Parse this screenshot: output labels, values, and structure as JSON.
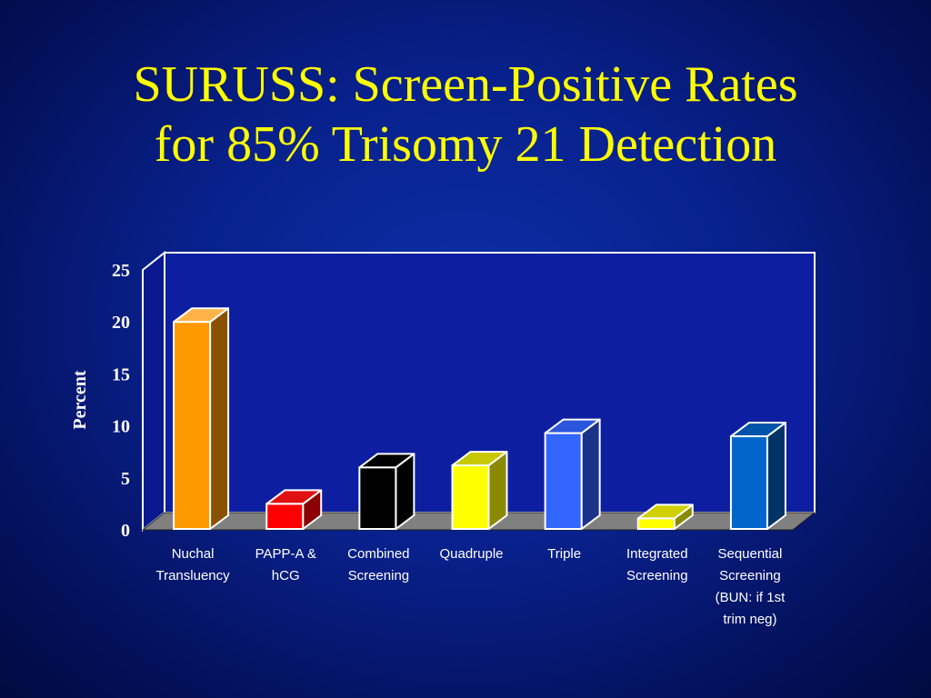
{
  "slide": {
    "title_line1": "SURUSS: Screen-Positive Rates",
    "title_line2": "for 85% Trisomy 21 Detection"
  },
  "chart_data": {
    "type": "bar",
    "title": "",
    "xlabel": "",
    "ylabel": "Percent",
    "ylim": [
      0,
      25
    ],
    "yticks": [
      0,
      5,
      10,
      15,
      20,
      25
    ],
    "grid": false,
    "legend": "none",
    "categories": [
      [
        "Nuchal",
        "Transluency"
      ],
      [
        "PAPP-A &",
        "hCG"
      ],
      [
        "Combined",
        "Screening"
      ],
      [
        "Quadruple"
      ],
      [
        "Triple"
      ],
      [
        "Integrated",
        "Screening"
      ],
      [
        "Sequential",
        "Screening",
        "(BUN: if 1st",
        "trim neg)"
      ]
    ],
    "values": [
      20.0,
      2.5,
      6.0,
      6.2,
      9.3,
      1.1,
      9.0
    ],
    "colors": [
      {
        "front": "#ff9900",
        "side": "#8a5200",
        "top": "#ffb347"
      },
      {
        "front": "#ff0000",
        "side": "#8b0000",
        "top": "#e01010"
      },
      {
        "front": "#000000",
        "side": "#000000",
        "top": "#000000"
      },
      {
        "front": "#ffff00",
        "side": "#8a8a00",
        "top": "#c8c800"
      },
      {
        "front": "#3366ff",
        "side": "#1a3388",
        "top": "#2a55dd"
      },
      {
        "front": "#ffff00",
        "side": "#8a8a00",
        "top": "#d0d000"
      },
      {
        "front": "#0066cc",
        "side": "#003366",
        "top": "#0055aa"
      }
    ]
  }
}
